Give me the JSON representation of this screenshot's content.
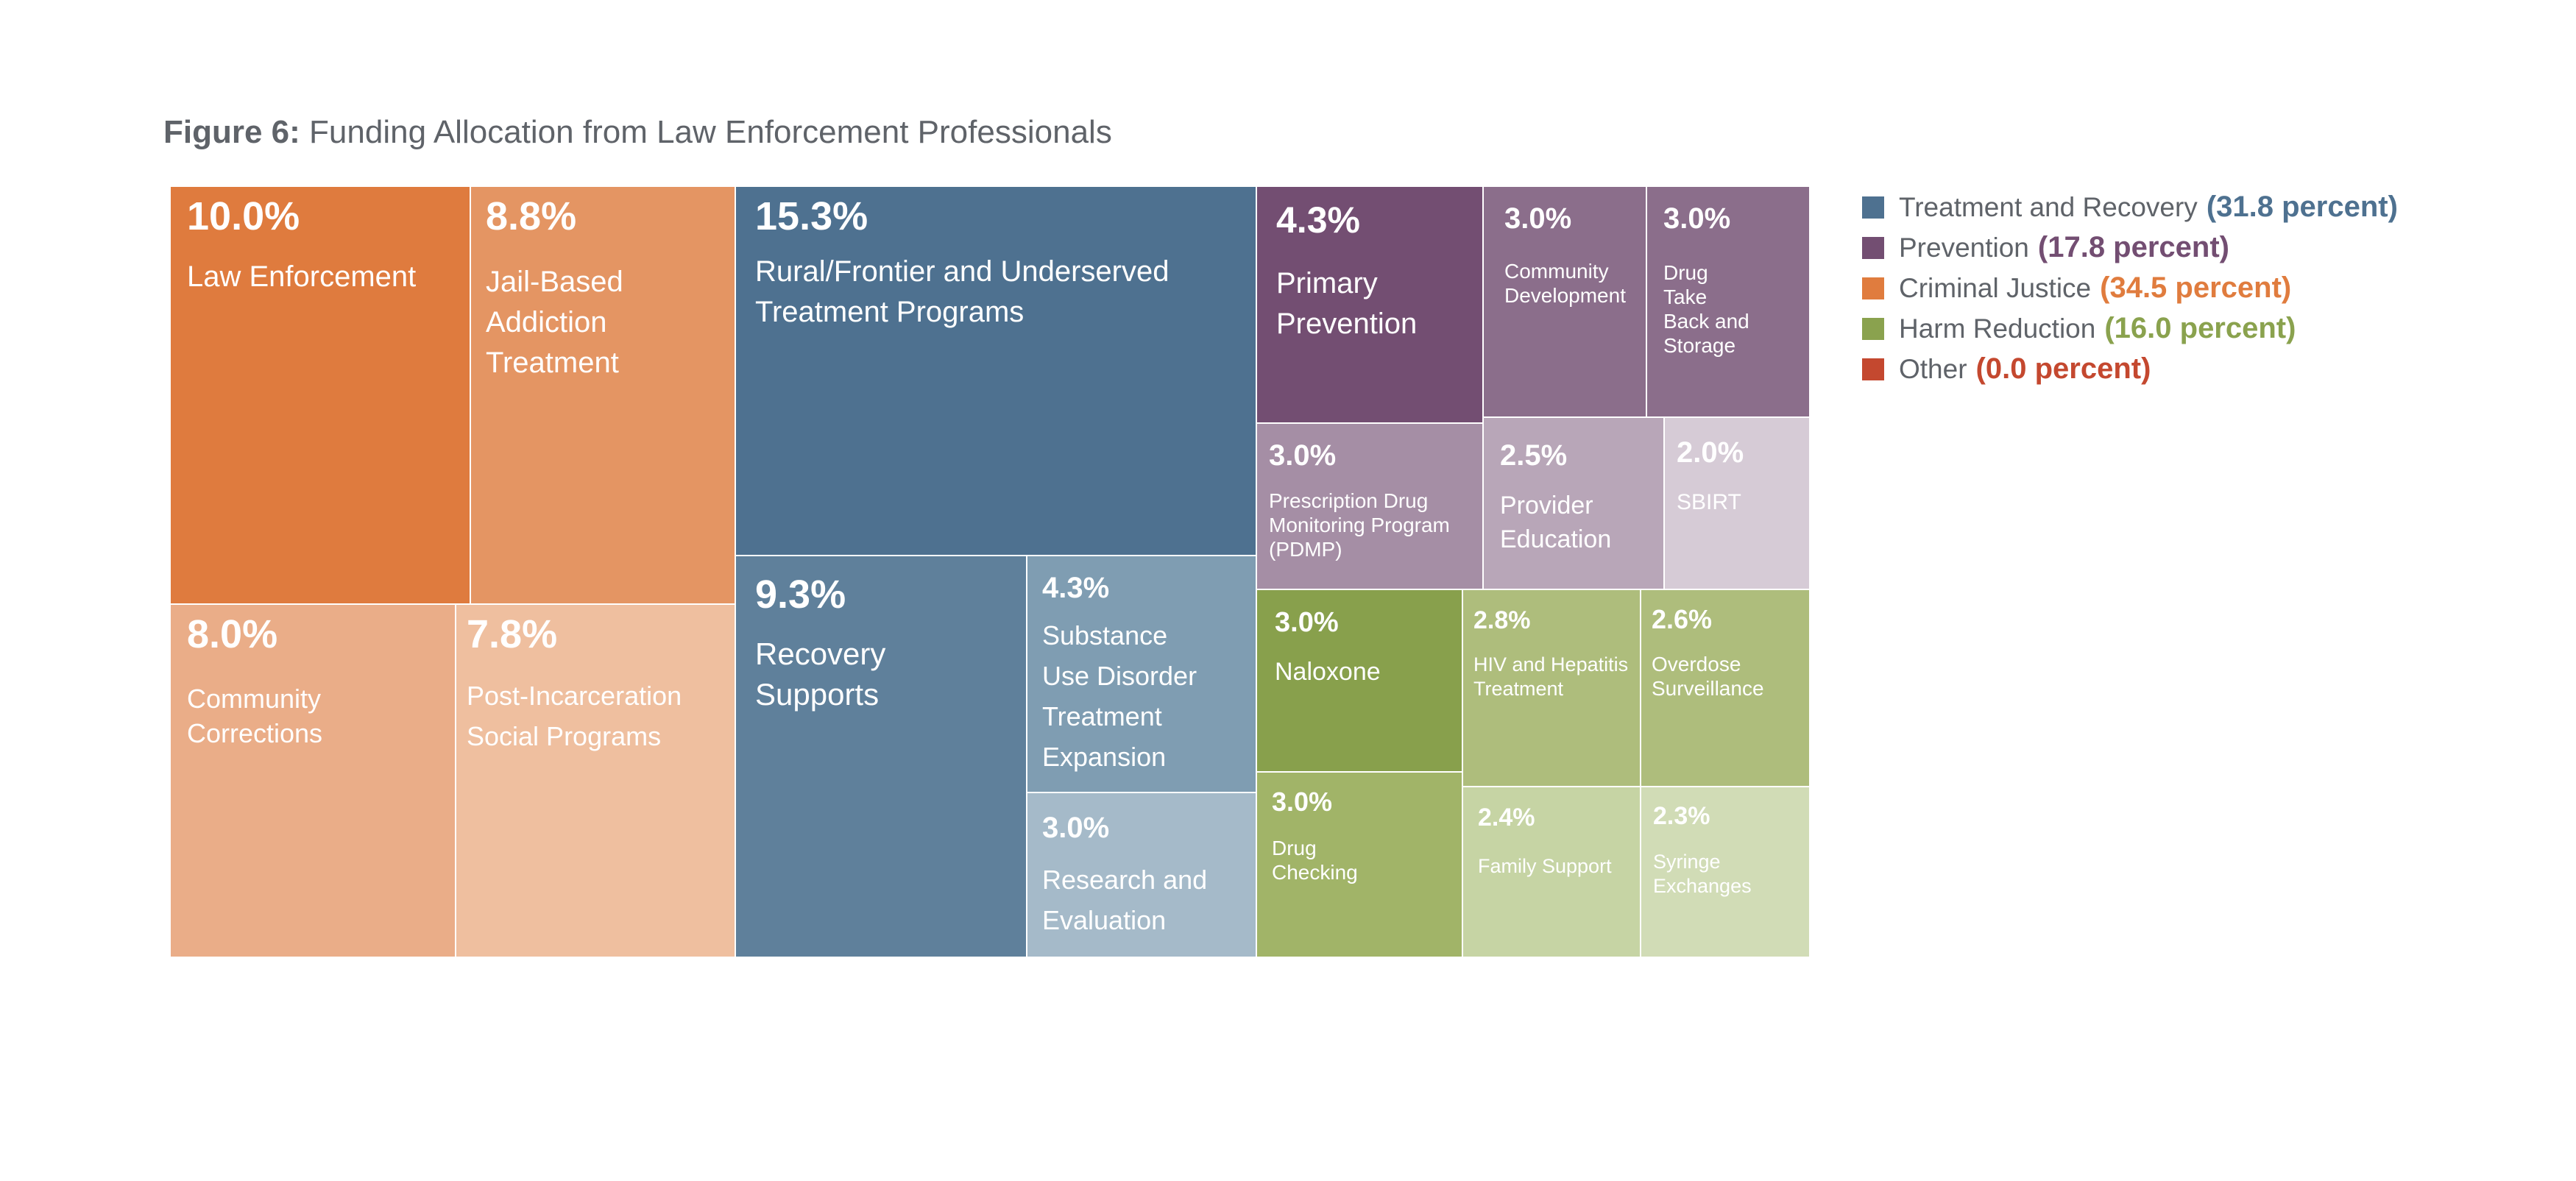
{
  "title": {
    "prefix": "Figure 6:",
    "text": "Funding Allocation from Law Enforcement Professionals"
  },
  "legend": [
    {
      "label": "Treatment and Recovery",
      "value": "(31.8 percent)",
      "color": "#4e7190"
    },
    {
      "label": "Prevention",
      "value": "(17.8 percent)",
      "color": "#734e72"
    },
    {
      "label": "Criminal Justice",
      "value": "(34.5 percent)",
      "color": "#e07c3e"
    },
    {
      "label": "Harm Reduction",
      "value": "(16.0 percent)",
      "color": "#8aa24e"
    },
    {
      "label": "Other",
      "value": "(0.0 percent)",
      "color": "#c4482f"
    }
  ],
  "chart_data": {
    "type": "treemap",
    "title": "Figure 6: Funding Allocation from Law Enforcement Professionals",
    "legend_position": "right",
    "groups": [
      {
        "name": "Criminal Justice",
        "total_percent": 34.5,
        "items": [
          {
            "id": "law-enforcement",
            "label": "Law Enforcement",
            "value": 10.0,
            "pct": "10.0%",
            "color": "#df7b3e"
          },
          {
            "id": "jail-based",
            "label": "Jail-Based Addiction Treatment",
            "value": 8.8,
            "pct": "8.8%",
            "color": "#e49563"
          },
          {
            "id": "community-corrections",
            "label": "Community Corrections",
            "value": 8.0,
            "pct": "8.0%",
            "color": "#eaad88"
          },
          {
            "id": "post-incarceration",
            "label": "Post-Incarceration Social Programs",
            "value": 7.8,
            "pct": "7.8%",
            "color": "#efbf9f"
          }
        ]
      },
      {
        "name": "Treatment and Recovery",
        "total_percent": 31.8,
        "items": [
          {
            "id": "rural-frontier",
            "label": "Rural/Frontier and Underserved Treatment Programs",
            "value": 15.3,
            "pct": "15.3%",
            "color": "#4e7190"
          },
          {
            "id": "recovery-supports",
            "label": "Recovery Supports",
            "value": 9.3,
            "pct": "9.3%",
            "color": "#5f809b"
          },
          {
            "id": "sud-treatment",
            "label": "Substance Use Disorder Treatment Expansion",
            "value": 4.3,
            "pct": "4.3%",
            "color": "#7f9db2"
          },
          {
            "id": "research",
            "label": "Research and Evaluation",
            "value": 3.0,
            "pct": "3.0%",
            "color": "#a5bac9"
          }
        ]
      },
      {
        "name": "Prevention",
        "total_percent": 17.8,
        "items": [
          {
            "id": "primary-prevention",
            "label": "Primary Prevention",
            "value": 4.3,
            "pct": "4.3%",
            "color": "#734e72"
          },
          {
            "id": "community-development",
            "label": "Community Development",
            "value": 3.0,
            "pct": "3.0%",
            "color": "#8b6e8b"
          },
          {
            "id": "drug-take-back",
            "label": "Drug Take Back and Storage",
            "value": 3.0,
            "pct": "3.0%",
            "color": "#8b6e8b"
          },
          {
            "id": "pdmp",
            "label": "Prescription Drug Monitoring Program (PDMP)",
            "value": 3.0,
            "pct": "3.0%",
            "color": "#a58ea5"
          },
          {
            "id": "provider-education",
            "label": "Provider Education",
            "value": 2.5,
            "pct": "2.5%",
            "color": "#b8a6b8"
          },
          {
            "id": "sbirt",
            "label": "SBIRT",
            "value": 2.0,
            "pct": "2.0%",
            "color": "#d6cbd6"
          }
        ]
      },
      {
        "name": "Harm Reduction",
        "total_percent": 16.0,
        "items": [
          {
            "id": "naloxone",
            "label": "Naloxone",
            "value": 3.0,
            "pct": "3.0%",
            "color": "#88a04c"
          },
          {
            "id": "hiv-hepatitis",
            "label": "HIV and Hepatitis Treatment",
            "value": 2.8,
            "pct": "2.8%",
            "color": "#aebd7c"
          },
          {
            "id": "overdose-surveillance",
            "label": "Overdose Surveillance",
            "value": 2.6,
            "pct": "2.6%",
            "color": "#aebd7c"
          },
          {
            "id": "drug-checking",
            "label": "Drug Checking",
            "value": 3.0,
            "pct": "3.0%",
            "color": "#a1b468"
          },
          {
            "id": "family-support",
            "label": "Family Support",
            "value": 2.4,
            "pct": "2.4%",
            "color": "#c6d4a4"
          },
          {
            "id": "syringe-exchanges",
            "label": "Syringe Exchanges",
            "value": 2.3,
            "pct": "2.3%",
            "color": "#d1dcb6"
          }
        ]
      },
      {
        "name": "Other",
        "total_percent": 0.0,
        "items": []
      }
    ]
  }
}
